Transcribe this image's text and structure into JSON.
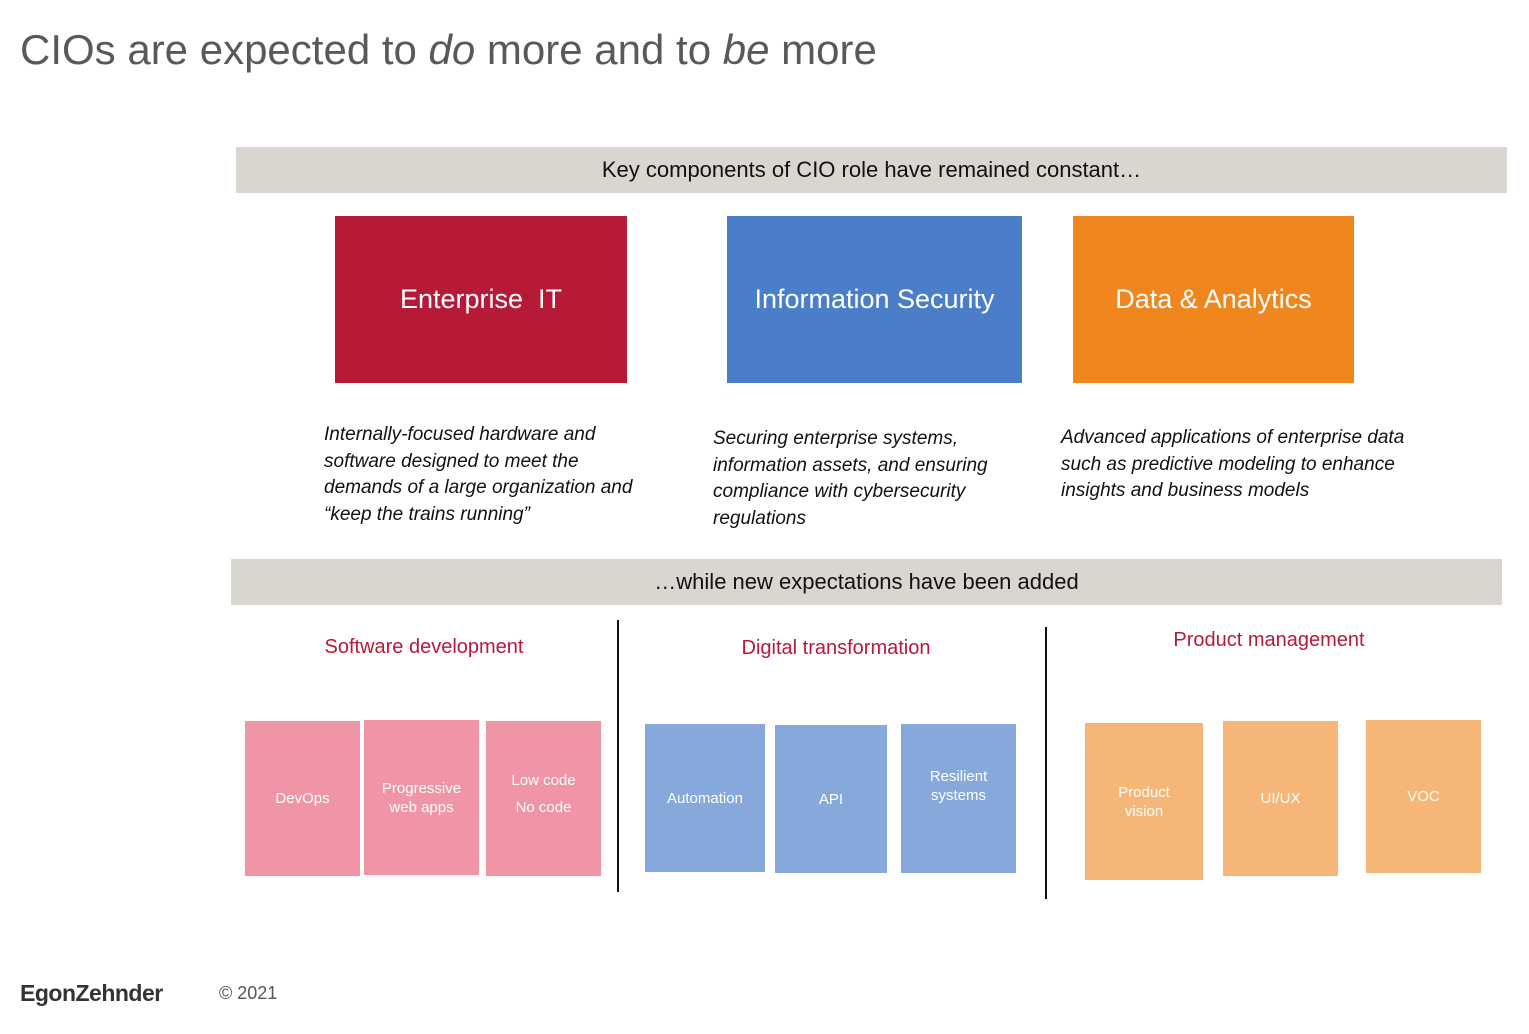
{
  "title": {
    "part1": "CIOs are expected to ",
    "em1": "do",
    "part2": " more and to ",
    "em2": "be",
    "part3": " more"
  },
  "banner_top": "Key components of CIO role have remained constant…",
  "banner_bottom": "…while new expectations have been added",
  "core": [
    {
      "label": "Enterprise  IT",
      "description": "Internally-focused hardware and software designed to meet the demands of a large organization and “keep the trains running”",
      "color": "#b71a37"
    },
    {
      "label": "Information Security",
      "description": "Securing enterprise systems, information assets, and ensuring compliance with cybersecurity regulations",
      "color": "#4a7ec9"
    },
    {
      "label": "Data & Analytics",
      "description": "Advanced applications of enterprise data such as predictive modeling to enhance insights and business models",
      "color": "#f0861e"
    }
  ],
  "categories": [
    {
      "title": "Software development",
      "items": [
        "DevOps",
        "Progressive web apps",
        "Low code",
        "No code"
      ]
    },
    {
      "title": "Digital transformation",
      "items": [
        "Automation",
        "API",
        "Resilient systems"
      ]
    },
    {
      "title": "Product management",
      "items": [
        "Product vision",
        "UI/UX",
        "VOC"
      ]
    }
  ],
  "colors": {
    "pink": "#f095a5",
    "blue": "#86a8da",
    "orange": "#f6b677",
    "category_title": "#b8193a",
    "banner": "#d9d5cf"
  },
  "footer": {
    "logo": "EgonZehnder",
    "copyright": "© 2021"
  }
}
